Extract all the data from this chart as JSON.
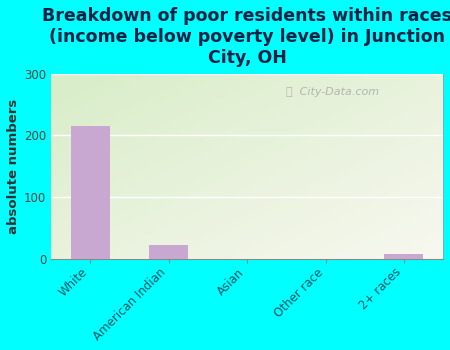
{
  "title": "Breakdown of poor residents within races\n(income below poverty level) in Junction\nCity, OH",
  "categories": [
    "White",
    "American Indian",
    "Asian",
    "Other race",
    "2+ races"
  ],
  "values": [
    215,
    22,
    0,
    0,
    8
  ],
  "bar_color": "#c8a8d0",
  "ylabel": "absolute numbers",
  "ylim": [
    0,
    300
  ],
  "yticks": [
    0,
    100,
    200,
    300
  ],
  "background_outer": "#00ffff",
  "bg_color_topleft": "#d8edc8",
  "bg_color_topright": "#f0f8e8",
  "bg_color_bottom": "#f8f8f0",
  "watermark": "City-Data.com",
  "title_fontsize": 12.5,
  "ylabel_fontsize": 9.5,
  "tick_fontsize": 8.5,
  "title_color": "#002244"
}
